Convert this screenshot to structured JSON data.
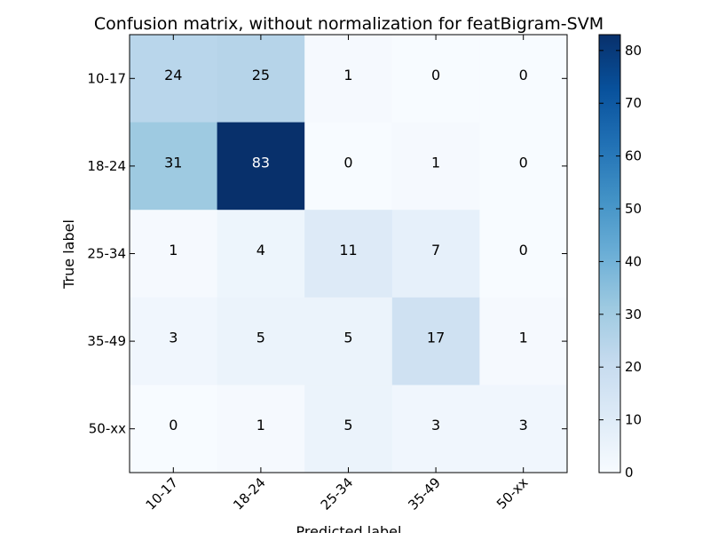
{
  "chart_data": {
    "type": "heatmap",
    "title": "Confusion matrix, without normalization for featBigram-SVM",
    "xlabel": "Predicted label",
    "ylabel": "True label",
    "x_categories": [
      "10-17",
      "18-24",
      "25-34",
      "35-49",
      "50-xx"
    ],
    "y_categories": [
      "10-17",
      "18-24",
      "25-34",
      "35-49",
      "50-xx"
    ],
    "values": [
      [
        24,
        25,
        1,
        0,
        0
      ],
      [
        31,
        83,
        0,
        1,
        0
      ],
      [
        1,
        4,
        11,
        7,
        0
      ],
      [
        3,
        5,
        5,
        17,
        1
      ],
      [
        0,
        1,
        5,
        3,
        3
      ]
    ],
    "colormap": "Blues",
    "color_low": "#f7fbff",
    "color_high": "#08306b",
    "colorbar": {
      "range": [
        0,
        83
      ],
      "ticks": [
        0,
        10,
        20,
        30,
        40,
        50,
        60,
        70,
        80
      ]
    }
  }
}
